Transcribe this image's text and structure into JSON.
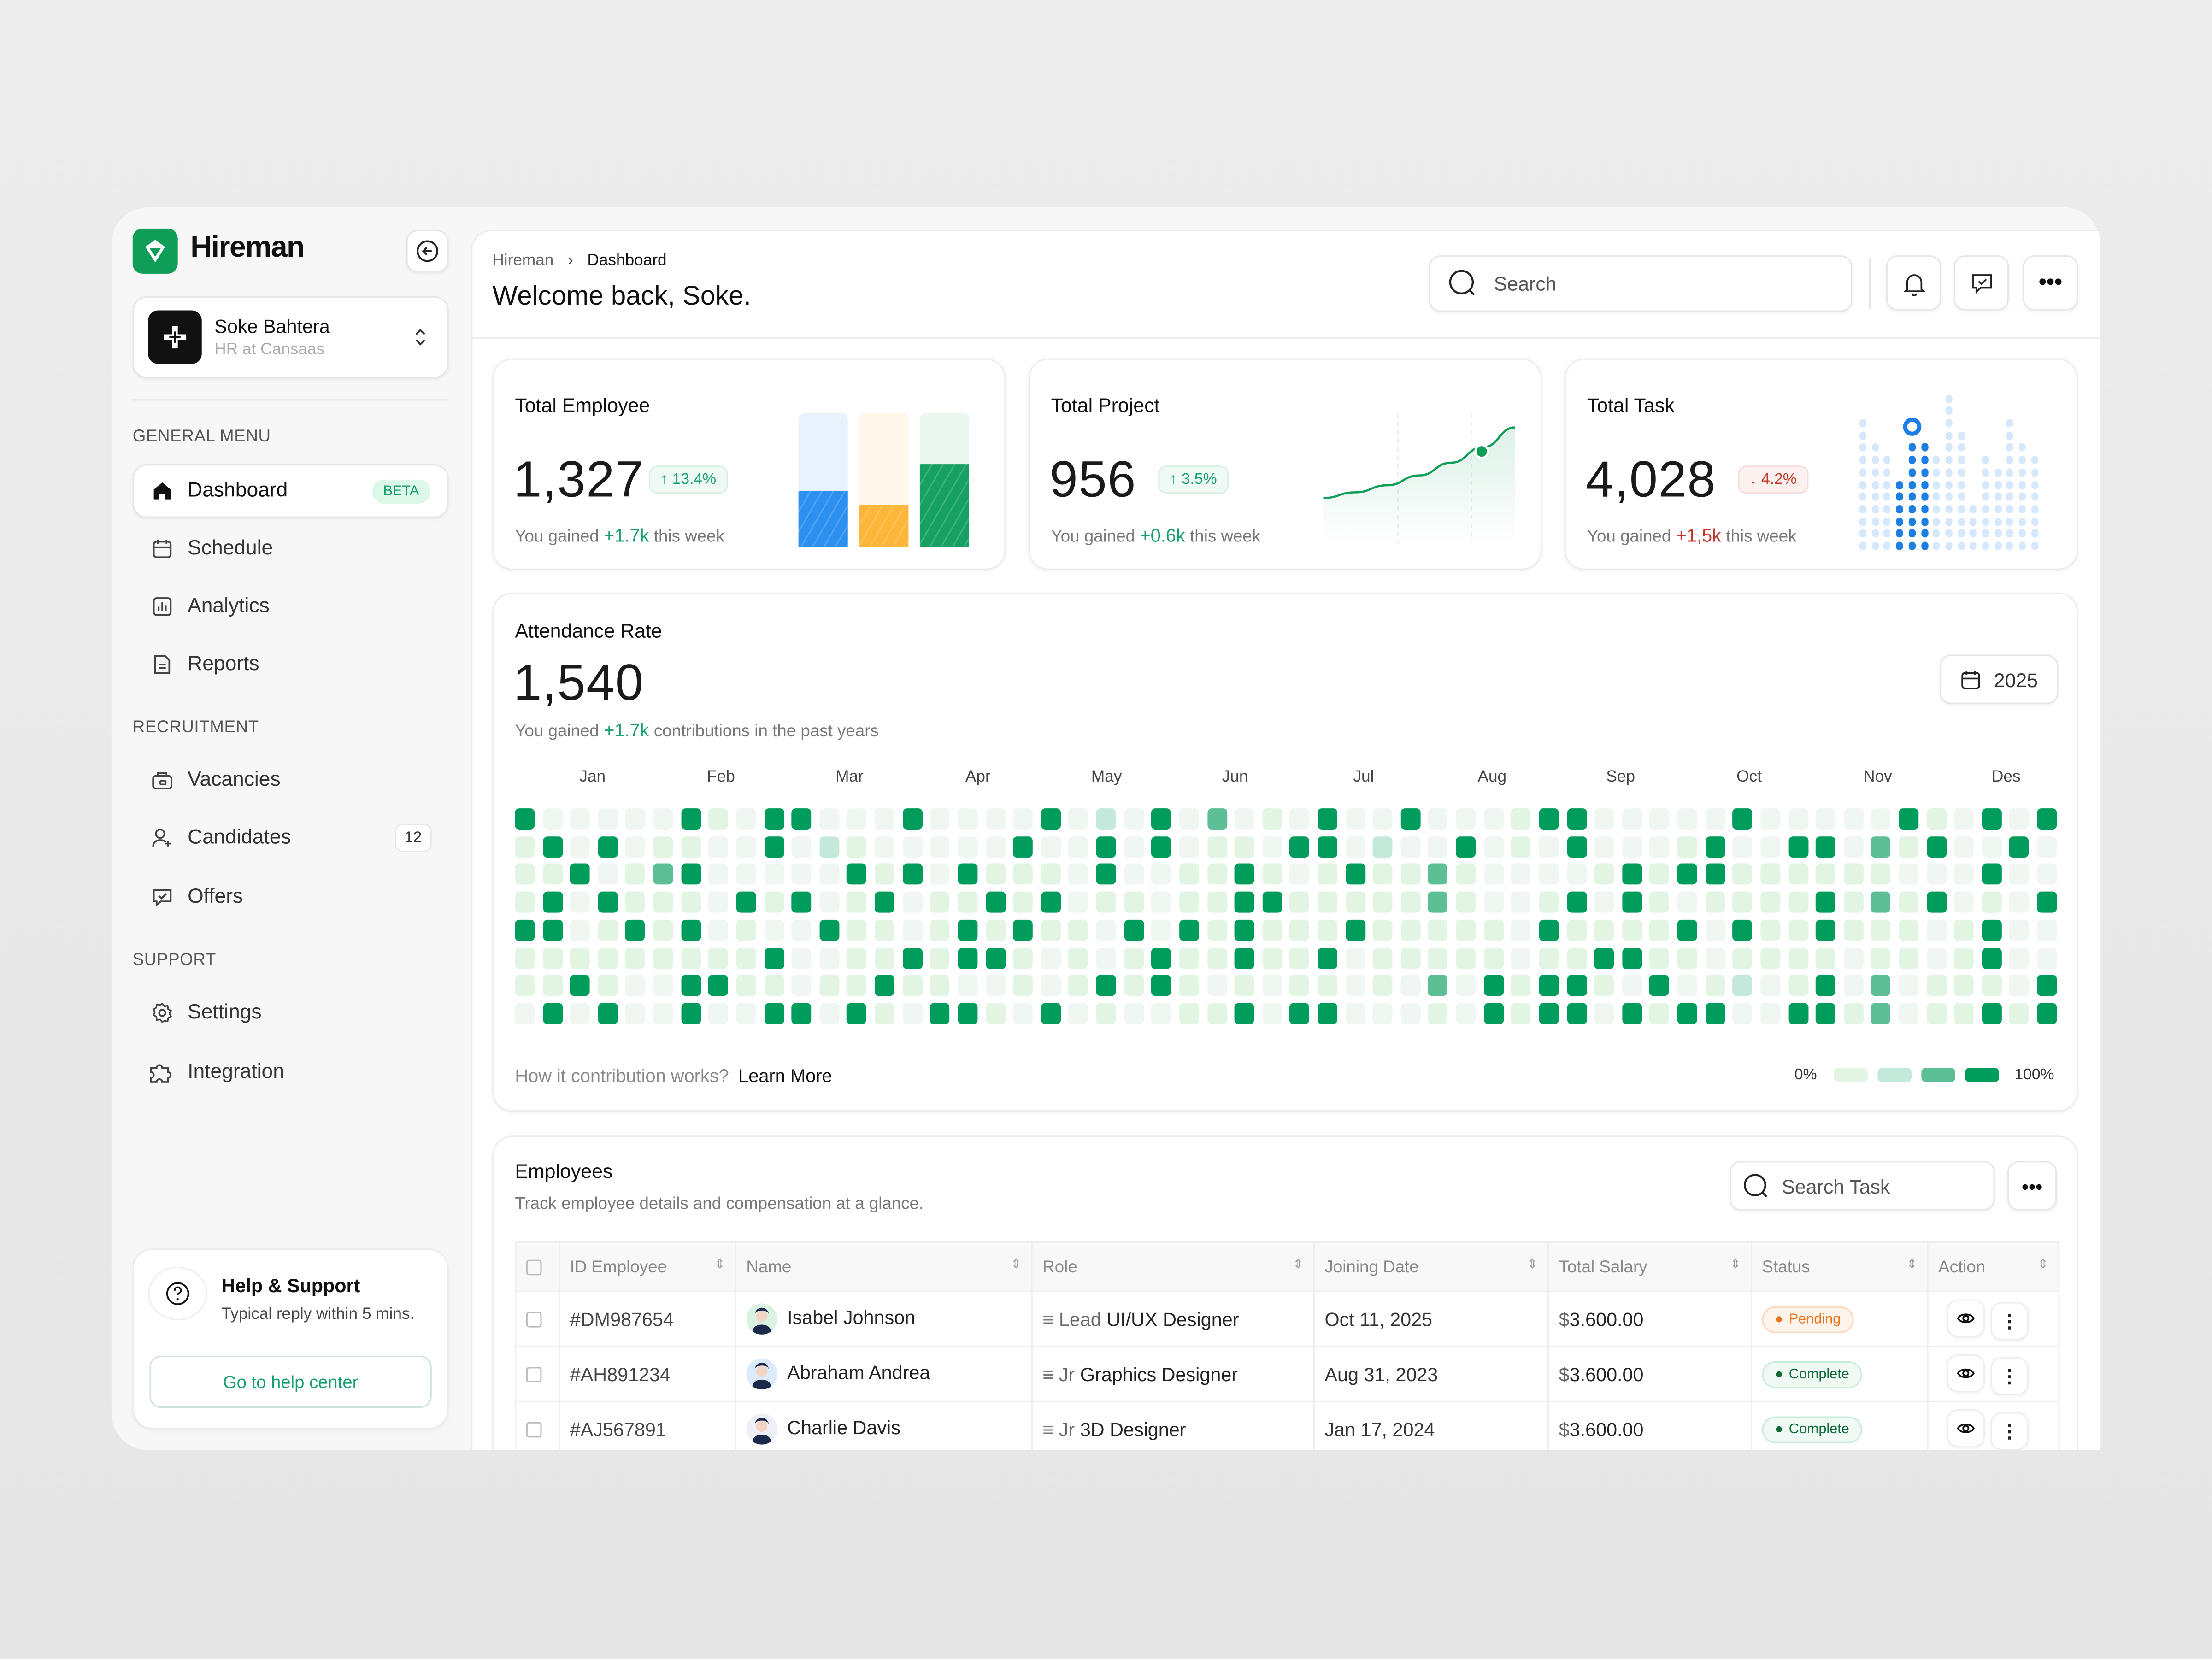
{
  "app": {
    "name": "Hireman"
  },
  "profile": {
    "name": "Soke Bahtera",
    "role": "HR at Cansaas"
  },
  "sidebar": {
    "general_label": "GENERAL MENU",
    "general": [
      {
        "label": "Dashboard",
        "badge": "BETA",
        "icon": "home-icon"
      },
      {
        "label": "Schedule",
        "icon": "calendar-icon"
      },
      {
        "label": "Analytics",
        "icon": "chart-icon"
      },
      {
        "label": "Reports",
        "icon": "document-icon"
      }
    ],
    "recruitment_label": "RECRUITMENT",
    "recruitment": [
      {
        "label": "Vacancies",
        "icon": "briefcase-icon"
      },
      {
        "label": "Candidates",
        "count": "12",
        "icon": "user-plus-icon"
      },
      {
        "label": "Offers",
        "icon": "message-check-icon"
      }
    ],
    "support_label": "SUPPORT",
    "support": [
      {
        "label": "Settings",
        "icon": "gear-icon"
      },
      {
        "label": "Integration",
        "icon": "puzzle-icon"
      }
    ],
    "help": {
      "title": "Help & Support",
      "subtitle": "Typical reply within 5 mins.",
      "button": "Go to help center"
    }
  },
  "header": {
    "breadcrumb": [
      "Hireman",
      "Dashboard"
    ],
    "title": "Welcome back, Soke.",
    "search_placeholder": "Search"
  },
  "stats": [
    {
      "title": "Total Employee",
      "value": "1,327",
      "change": "13.4%",
      "direction": "up",
      "gain_prefix": "You gained",
      "gain": "+1.7k",
      "gain_suffix": "this week",
      "bars": [
        {
          "fill": 0.42,
          "color": "#2d8ff0",
          "bg": "#e8f2fd"
        },
        {
          "fill": 0.32,
          "color": "#fdb63a",
          "bg": "#fff7ea"
        },
        {
          "fill": 0.62,
          "color": "#16a064",
          "bg": "#eaf7ef"
        }
      ]
    },
    {
      "title": "Total Project",
      "value": "956",
      "change": "3.5%",
      "direction": "up",
      "gain_prefix": "You gained",
      "gain": "+0.6k",
      "gain_suffix": "this week",
      "trend": [
        0,
        8,
        18,
        32,
        50,
        72,
        100
      ],
      "highlight_index": 5
    },
    {
      "title": "Total Task",
      "value": "4,028",
      "change": "4.2%",
      "direction": "down",
      "gain_prefix": "You gained",
      "gain": "+1,5k",
      "gain_suffix": "this week",
      "dot_columns": [
        11,
        9,
        8,
        6,
        9,
        9,
        8,
        13,
        10,
        4,
        8,
        7,
        11,
        9,
        8
      ],
      "active_columns": [
        3,
        4,
        5
      ],
      "marker_column": 4
    }
  ],
  "attendance": {
    "title": "Attendance Rate",
    "value": "1,540",
    "gain_prefix": "You gained",
    "gain": "+1.7k",
    "gain_suffix": "contributions in the past years",
    "year": "2025",
    "help_text": "How it contribution works?",
    "learn_more": "Learn More",
    "legend_min": "0%",
    "legend_max": "100%",
    "level_colors": [
      "#f0f7f3",
      "#e2f5e3",
      "#c4e8da",
      "#5cbf96",
      "#009c5b"
    ]
  },
  "chart_data": {
    "type": "heatmap",
    "title": "Attendance Rate",
    "x_labels": [
      "Jan",
      "Feb",
      "Mar",
      "Apr",
      "May",
      "Jun",
      "Jul",
      "Aug",
      "Sep",
      "Oct",
      "Nov",
      "Des"
    ],
    "levels": [
      "0%",
      "25%",
      "50%",
      "75%",
      "100%"
    ],
    "rows": [
      "40000041044000400004020403010400400014400000400000410404",
      "14040110040210000040040401104402004010400014004403140040",
      "11401340000041404111040011410141131000014144111111000400",
      "14041110414014011414011011441111131001404101111413140104",
      "44014140100411014141104041411141111104111140411411101400",
      "11111111140011414410101411411401111101144110111101101400",
      "11410044110114110010141410101101030414410401201403011104",
      "04040040044041044104010011404400010414404144004413011414"
    ]
  },
  "employees": {
    "title": "Employees",
    "subtitle": "Track employee details and compensation at a glance.",
    "search_placeholder": "Search Task",
    "columns": [
      "ID Employee",
      "Name",
      "Role",
      "Joining Date",
      "Total Salary",
      "Status",
      "Action"
    ],
    "rows": [
      {
        "id": "#DM987654",
        "name": "Isabel Johnson",
        "role_level": "Lead",
        "role": "UI/UX Designer",
        "date": "Oct 11, 2025",
        "salary_symbol": "$",
        "salary": "3.600.00",
        "status": "Pending",
        "avatar_bg": "#d9f2e2"
      },
      {
        "id": "#AH891234",
        "name": "Abraham Andrea",
        "role_level": "Jr",
        "role": "Graphics Designer",
        "date": "Aug 31, 2023",
        "salary_symbol": "$",
        "salary": "3.600.00",
        "status": "Complete",
        "avatar_bg": "#dcebfb"
      },
      {
        "id": "#AJ567891",
        "name": "Charlie Davis",
        "role_level": "Jr",
        "role": "3D Designer",
        "date": "Jan 17, 2024",
        "salary_symbol": "$",
        "salary": "3.600.00",
        "status": "Complete",
        "avatar_bg": "#eef0f6"
      }
    ]
  }
}
